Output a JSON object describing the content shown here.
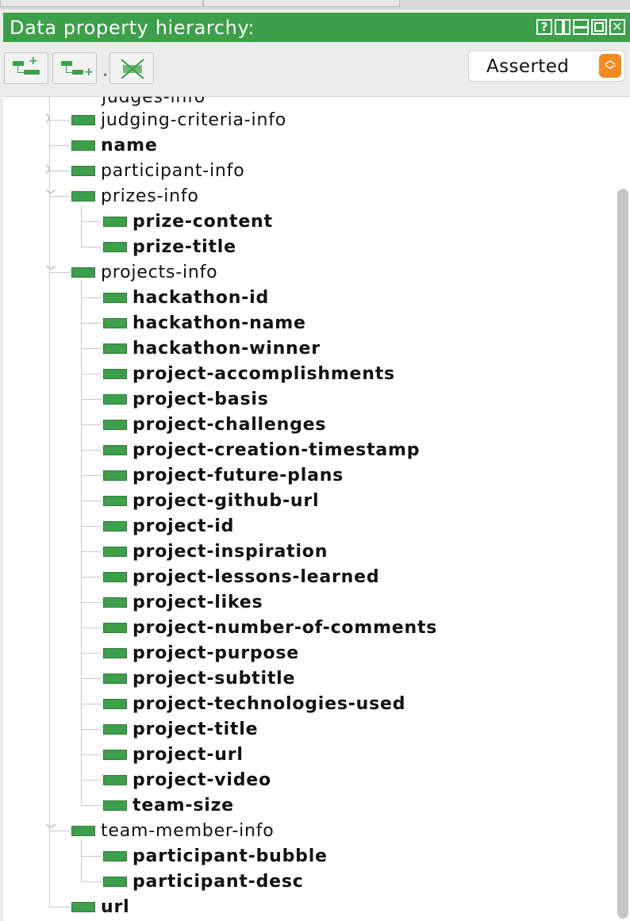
{
  "panel": {
    "title": "Data property hierarchy:",
    "window_buttons": {
      "help": "?",
      "close": "✕"
    },
    "toolbar": {
      "add_subproperty_icon": "add-subproperty-icon",
      "add_sibling_icon": "add-sibling-property-icon",
      "delete_icon": "delete-property-icon"
    },
    "view_mode": {
      "selected": "Asserted"
    }
  },
  "tree": {
    "cutoff_label": "judges-info",
    "rows": [
      {
        "label": "judging-criteria-info",
        "level": 0,
        "bold": false,
        "expander": "collapsed"
      },
      {
        "label": "name",
        "level": 0,
        "bold": true,
        "expander": "none"
      },
      {
        "label": "participant-info",
        "level": 0,
        "bold": false,
        "expander": "collapsed"
      },
      {
        "label": "prizes-info",
        "level": 0,
        "bold": false,
        "expander": "expanded"
      },
      {
        "label": "prize-content",
        "level": 1,
        "bold": true,
        "expander": "none"
      },
      {
        "label": "prize-title",
        "level": 1,
        "bold": true,
        "expander": "none"
      },
      {
        "label": "projects-info",
        "level": 0,
        "bold": false,
        "expander": "expanded"
      },
      {
        "label": "hackathon-id",
        "level": 1,
        "bold": true,
        "expander": "none"
      },
      {
        "label": "hackathon-name",
        "level": 1,
        "bold": true,
        "expander": "none"
      },
      {
        "label": "hackathon-winner",
        "level": 1,
        "bold": true,
        "expander": "none"
      },
      {
        "label": "project-accomplishments",
        "level": 1,
        "bold": true,
        "expander": "none"
      },
      {
        "label": "project-basis",
        "level": 1,
        "bold": true,
        "expander": "none"
      },
      {
        "label": "project-challenges",
        "level": 1,
        "bold": true,
        "expander": "none"
      },
      {
        "label": "project-creation-timestamp",
        "level": 1,
        "bold": true,
        "expander": "none"
      },
      {
        "label": "project-future-plans",
        "level": 1,
        "bold": true,
        "expander": "none"
      },
      {
        "label": "project-github-url",
        "level": 1,
        "bold": true,
        "expander": "none"
      },
      {
        "label": "project-id",
        "level": 1,
        "bold": true,
        "expander": "none"
      },
      {
        "label": "project-inspiration",
        "level": 1,
        "bold": true,
        "expander": "none"
      },
      {
        "label": "project-lessons-learned",
        "level": 1,
        "bold": true,
        "expander": "none"
      },
      {
        "label": "project-likes",
        "level": 1,
        "bold": true,
        "expander": "none"
      },
      {
        "label": "project-number-of-comments",
        "level": 1,
        "bold": true,
        "expander": "none"
      },
      {
        "label": "project-purpose",
        "level": 1,
        "bold": true,
        "expander": "none"
      },
      {
        "label": "project-subtitle",
        "level": 1,
        "bold": true,
        "expander": "none"
      },
      {
        "label": "project-technologies-used",
        "level": 1,
        "bold": true,
        "expander": "none"
      },
      {
        "label": "project-title",
        "level": 1,
        "bold": true,
        "expander": "none"
      },
      {
        "label": "project-url",
        "level": 1,
        "bold": true,
        "expander": "none"
      },
      {
        "label": "project-video",
        "level": 1,
        "bold": true,
        "expander": "none"
      },
      {
        "label": "team-size",
        "level": 1,
        "bold": true,
        "expander": "none"
      },
      {
        "label": "team-member-info",
        "level": 0,
        "bold": false,
        "expander": "expanded"
      },
      {
        "label": "participant-bubble",
        "level": 1,
        "bold": true,
        "expander": "none"
      },
      {
        "label": "participant-desc",
        "level": 1,
        "bold": true,
        "expander": "none"
      },
      {
        "label": "url",
        "level": 0,
        "bold": true,
        "expander": "none"
      }
    ]
  },
  "colors": {
    "accent_green": "#3c9f4a",
    "dropdown_arrow_orange": "#f28a1e"
  }
}
